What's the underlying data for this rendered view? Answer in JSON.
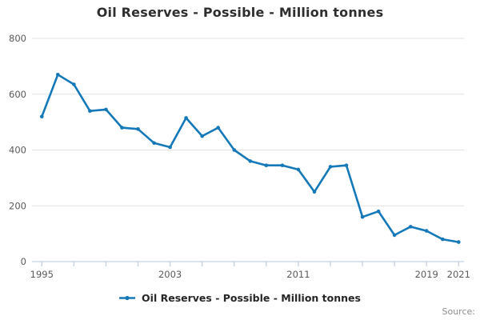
{
  "title": "Oil Reserves - Possible - Million tonnes",
  "legend": {
    "label": "Oil Reserves - Possible - Million tonnes"
  },
  "source_label": "Source:",
  "colors": {
    "line": "#1478b9",
    "grid": "#e2e2e2",
    "axis": "#c4d0e0",
    "tick_label": "#5a5a5a",
    "title_text": "#2e2e2e",
    "legend_text": "#262626",
    "source_text": "#8c8c8c"
  },
  "chart_data": {
    "type": "line",
    "title": "Oil Reserves - Possible - Million tonnes",
    "x": [
      1995,
      1996,
      1997,
      1998,
      1999,
      2000,
      2001,
      2002,
      2003,
      2004,
      2005,
      2006,
      2007,
      2008,
      2009,
      2010,
      2011,
      2012,
      2013,
      2014,
      2015,
      2016,
      2017,
      2018,
      2019,
      2020,
      2021
    ],
    "series": [
      {
        "name": "Oil Reserves - Possible - Million tonnes",
        "values": [
          520,
          670,
          635,
          540,
          545,
          480,
          475,
          425,
          410,
          515,
          450,
          480,
          400,
          360,
          345,
          345,
          330,
          250,
          340,
          345,
          160,
          180,
          95,
          125,
          110,
          80,
          70
        ]
      }
    ],
    "xlabel": "",
    "ylabel": "",
    "ylim": [
      0,
      800
    ],
    "y_ticks": [
      0,
      200,
      400,
      600,
      800
    ],
    "x_tick_years": [
      1995,
      1997,
      1999,
      2001,
      2003,
      2005,
      2007,
      2009,
      2011,
      2013,
      2015,
      2017,
      2019,
      2021
    ],
    "x_label_years": [
      1995,
      2003,
      2011,
      2019,
      2021
    ],
    "grid": "horizontal",
    "legend_position": "bottom",
    "marker": "point"
  }
}
